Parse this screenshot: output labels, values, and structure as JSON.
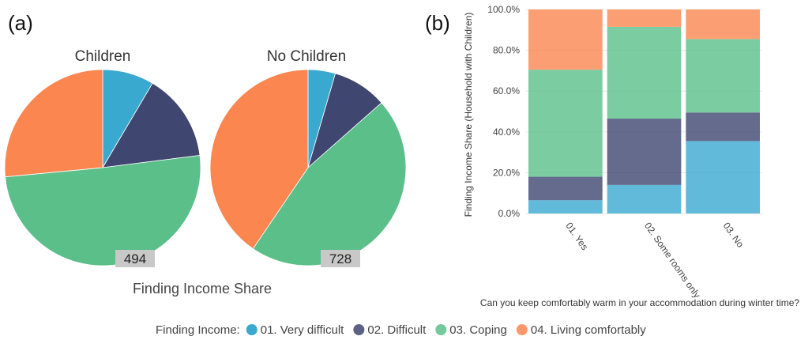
{
  "panels": {
    "a": "(a)",
    "b": "(b)"
  },
  "colors": {
    "very_difficult": "#3aa9cf",
    "difficult": "#3f4670",
    "coping": "#5bbf8a",
    "living_comfortably": "#fb8650"
  },
  "chart_data": [
    {
      "type": "pie",
      "title": "Children",
      "count_label": "494",
      "categories": [
        "01. Very difficult",
        "02. Difficult",
        "03. Coping",
        "04. Living comfortably"
      ],
      "values": [
        8.5,
        14.5,
        50.5,
        26.5
      ]
    },
    {
      "type": "pie",
      "title": "No Children",
      "count_label": "728",
      "categories": [
        "01. Very difficult",
        "02. Difficult",
        "03. Coping",
        "04. Living comfortably"
      ],
      "values": [
        4.5,
        9.0,
        46.0,
        40.5
      ]
    },
    {
      "type": "bar",
      "stacked": true,
      "categories": [
        "01. Yes",
        "02. Some rooms only",
        "03. No"
      ],
      "series": [
        {
          "name": "01. Very difficult",
          "values": [
            6.5,
            14.0,
            35.5
          ]
        },
        {
          "name": "02. Difficult",
          "values": [
            11.5,
            32.5,
            14.0
          ]
        },
        {
          "name": "03. Coping",
          "values": [
            52.5,
            45.0,
            36.0
          ]
        },
        {
          "name": "04. Living comfortably",
          "values": [
            29.5,
            8.5,
            14.5
          ]
        }
      ],
      "xlabel": "Can you keep comfortably warm in your accommodation during winter time?",
      "ylabel": "Finding Income Share (Household with Children)",
      "ylim": [
        0,
        100
      ],
      "ytick_labels": [
        "0.0%",
        "20.0%",
        "40.0%",
        "60.0%",
        "80.0%",
        "100.0%"
      ],
      "grid": true
    }
  ],
  "pies_caption": "Finding Income Share",
  "legend": {
    "title": "Finding Income:",
    "items": [
      "01. Very difficult",
      "02. Difficult",
      "03. Coping",
      "04. Living comfortably"
    ]
  }
}
